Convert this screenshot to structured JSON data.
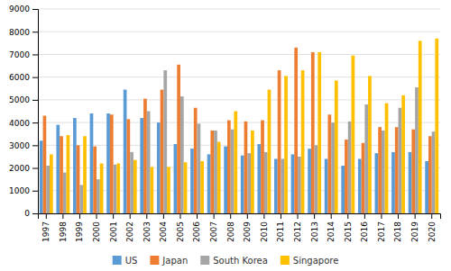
{
  "chart_data": {
    "type": "bar",
    "categories": [
      "1997",
      "1998",
      "1999",
      "2000",
      "2001",
      "2002",
      "2003",
      "2004",
      "2005",
      "2006",
      "2007",
      "2008",
      "2009",
      "2010",
      "2011",
      "2012",
      "2013",
      "2014",
      "2015",
      "2016",
      "2017",
      "2018",
      "2019",
      "2020"
    ],
    "series": [
      {
        "name": "US",
        "color": "#5B9BD5",
        "values": [
          3200,
          3900,
          4200,
          4400,
          4400,
          5450,
          4200,
          4000,
          3050,
          2850,
          2600,
          2950,
          2550,
          3050,
          2400,
          2600,
          2850,
          2400,
          2100,
          2400,
          2650,
          2700,
          2700,
          2300
        ]
      },
      {
        "name": "Japan",
        "color": "#ED7D31",
        "values": [
          4300,
          3400,
          3000,
          2950,
          4350,
          4150,
          5050,
          5450,
          6550,
          4650,
          3650,
          4100,
          4050,
          4100,
          6300,
          7300,
          7100,
          4350,
          3250,
          3100,
          3800,
          3800,
          3700,
          3400
        ]
      },
      {
        "name": "South Korea",
        "color": "#A5A5A5",
        "values": [
          2100,
          1800,
          1250,
          1500,
          2150,
          2700,
          4500,
          6300,
          5150,
          3950,
          3650,
          3700,
          2650,
          2700,
          2400,
          2500,
          3000,
          4000,
          4050,
          4800,
          3650,
          4650,
          5550,
          3600
        ]
      },
      {
        "name": "Singapore",
        "color": "#FFC000",
        "values": [
          2600,
          3450,
          3400,
          2200,
          2200,
          2350,
          2050,
          2050,
          2250,
          2300,
          3150,
          4500,
          3650,
          5450,
          6050,
          6300,
          7100,
          5850,
          6950,
          6050,
          4850,
          5200,
          7600,
          7700
        ]
      }
    ],
    "ylim": [
      0,
      9000
    ],
    "yticks": [
      0,
      1000,
      2000,
      3000,
      4000,
      5000,
      6000,
      7000,
      8000,
      9000
    ],
    "grid": true,
    "legend": "bottom"
  }
}
